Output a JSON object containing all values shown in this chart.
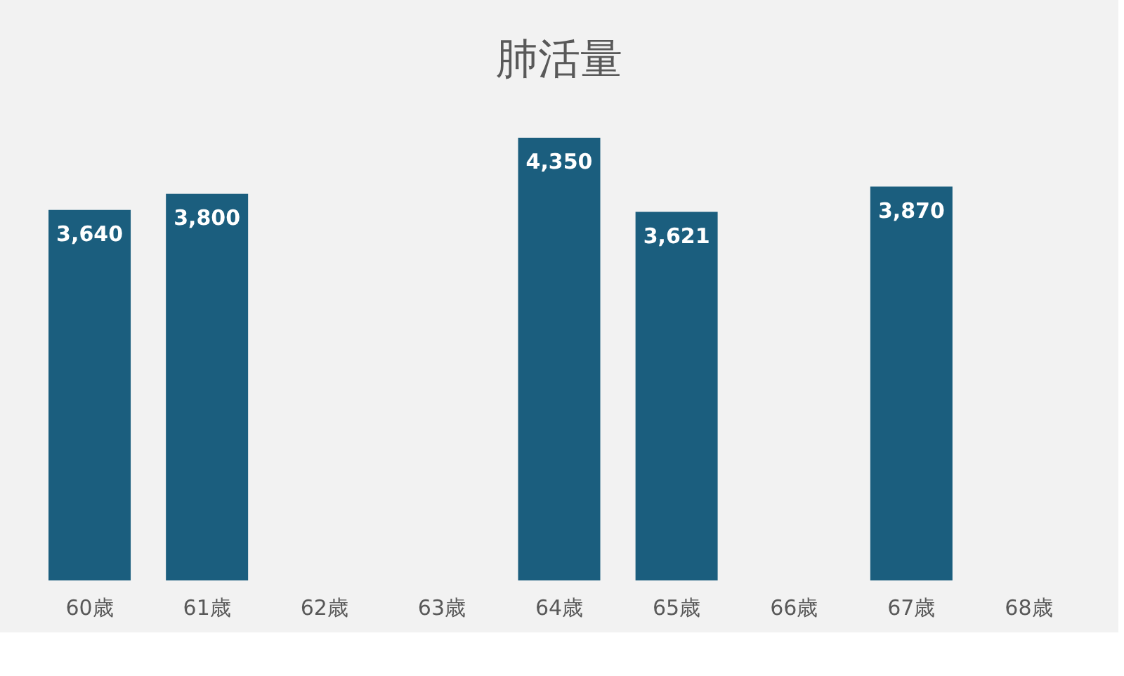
{
  "chart_data": {
    "type": "bar",
    "title": "肺活量",
    "categories": [
      "60歳",
      "61歳",
      "62歳",
      "63歳",
      "64歳",
      "65歳",
      "66歳",
      "67歳",
      "68歳"
    ],
    "values": [
      3640,
      3800,
      null,
      null,
      4350,
      3621,
      null,
      3870,
      null
    ],
    "value_labels": [
      "3,640",
      "3,800",
      null,
      null,
      "4,350",
      "3,621",
      null,
      "3,870",
      null
    ],
    "color": "#1b5e7e"
  }
}
